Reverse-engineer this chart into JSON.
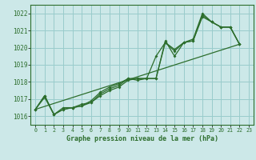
{
  "title": "Graphe pression niveau de la mer (hPa)",
  "bg_color": "#cce8e8",
  "grid_color": "#99cccc",
  "line_color": "#2d6e2d",
  "xlim": [
    -0.5,
    23.5
  ],
  "ylim": [
    1015.5,
    1022.5
  ],
  "yticks": [
    1016,
    1017,
    1018,
    1019,
    1020,
    1021,
    1022
  ],
  "xticks": [
    0,
    1,
    2,
    3,
    4,
    5,
    6,
    7,
    8,
    9,
    10,
    11,
    12,
    13,
    14,
    15,
    16,
    17,
    18,
    19,
    20,
    21,
    22,
    23
  ],
  "straight_line": {
    "x": [
      0,
      22
    ],
    "y": [
      1016.4,
      1020.2
    ]
  },
  "series1": [
    1016.4,
    1017.2,
    1016.1,
    1016.4,
    1016.5,
    1016.6,
    1016.8,
    1017.3,
    1017.6,
    1017.8,
    1018.2,
    1018.1,
    1018.2,
    1019.5,
    1020.3,
    1019.9,
    1020.3,
    1020.4,
    1021.9,
    1021.5,
    1021.2,
    1021.2,
    1020.2,
    null
  ],
  "series2": [
    1016.4,
    1017.2,
    1016.1,
    1016.4,
    1016.5,
    1016.6,
    1016.9,
    1017.4,
    1017.7,
    1017.9,
    1018.2,
    1018.2,
    1018.2,
    1018.2,
    1020.4,
    1019.5,
    1020.3,
    1020.5,
    1022.0,
    1021.5,
    1021.2,
    1021.2,
    1020.2,
    null
  ],
  "series3": [
    1016.4,
    1017.1,
    1016.1,
    1016.5,
    1016.5,
    1016.7,
    1016.8,
    1017.2,
    1017.5,
    1017.7,
    1018.1,
    1018.2,
    1018.2,
    1018.2,
    1020.3,
    1019.8,
    1020.3,
    1020.4,
    1021.8,
    1021.5,
    1021.2,
    1021.2,
    1020.2,
    null
  ]
}
